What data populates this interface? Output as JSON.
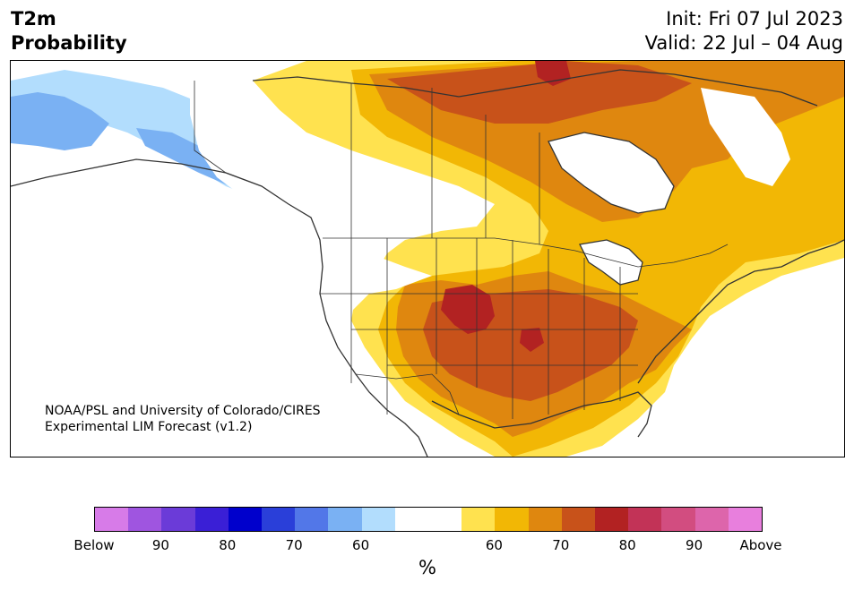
{
  "header": {
    "title_line1": "T2m",
    "title_line2": "Probability",
    "init": "Init: Fri 07 Jul 2023",
    "valid": "Valid: 22 Jul – 04 Aug"
  },
  "credit": {
    "line1": "NOAA/PSL and University of Colorado/CIRES",
    "line2": "Experimental LIM Forecast (v1.2)"
  },
  "colorbar": {
    "colors": [
      "#d77be8",
      "#9f55e0",
      "#6b3bd8",
      "#3a1fd6",
      "#0000cc",
      "#2a3fd9",
      "#5277e8",
      "#7ab1f3",
      "#b2ddfd",
      "#ffffff",
      "#ffffff",
      "#ffe24f",
      "#f2b705",
      "#df870f",
      "#c8521a",
      "#b22222",
      "#c23357",
      "#d24d80",
      "#dd65ab",
      "#e87fdd"
    ],
    "tick_labels": [
      "Below",
      "90",
      "80",
      "70",
      "60",
      "60",
      "70",
      "80",
      "90",
      "Above"
    ],
    "unit": "%"
  },
  "legend_categories": [
    {
      "label": "Below",
      "color": "#d77be8"
    },
    {
      "label": "90",
      "color": "#6b3bd8"
    },
    {
      "label": "80",
      "color": "#0000cc"
    },
    {
      "label": "70",
      "color": "#5277e8"
    },
    {
      "label": "60",
      "color": "#b2ddfd"
    },
    {
      "label": "60",
      "color": "#ffe24f"
    },
    {
      "label": "70",
      "color": "#df870f"
    },
    {
      "label": "80",
      "color": "#b22222"
    },
    {
      "label": "90",
      "color": "#d24d80"
    },
    {
      "label": "Above",
      "color": "#e87fdd"
    }
  ],
  "map": {
    "region": "North America",
    "shading_colors": {
      "below_60": "#b2ddfd",
      "below_70": "#7ab1f3",
      "above_60": "#ffe24f",
      "above_65": "#f2b705",
      "above_70": "#df870f",
      "above_75": "#c8521a",
      "above_80": "#b22222"
    },
    "border_color": "#333333"
  }
}
